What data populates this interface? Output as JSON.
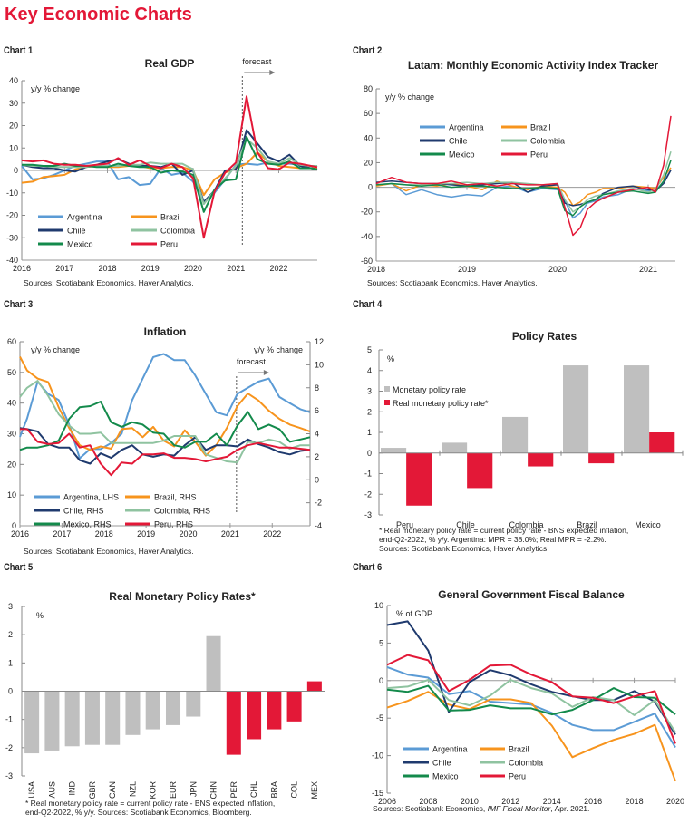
{
  "page": {
    "title": "Key Economic Charts"
  },
  "colors": {
    "Argentina": "#5b9bd5",
    "Brazil": "#f7941d",
    "Chile": "#1f3a6e",
    "Colombia": "#8fc3a0",
    "Mexico": "#138a4b",
    "Peru": "#e31837",
    "grey": "#bfbfbf",
    "red": "#e31837"
  },
  "chart_data": [
    {
      "id": "chart1",
      "label": "Chart 1",
      "type": "line",
      "title": "Real GDP",
      "unit_label": "y/y % change",
      "annotation": "forecast",
      "forecast_start": 2021.15,
      "xlim": [
        2016,
        2022.9
      ],
      "ylim": [
        -40,
        40
      ],
      "yticks": [
        40,
        30,
        20,
        10,
        0,
        -10,
        -20,
        -30,
        -40
      ],
      "xticks": [
        "2016",
        "2017",
        "2018",
        "2019",
        "2020",
        "2021",
        "2022"
      ],
      "legend": [
        "Argentina",
        "Brazil",
        "Chile",
        "Colombia",
        "Mexico",
        "Peru"
      ],
      "x": [
        2016.0,
        2016.25,
        2016.5,
        2016.75,
        2017.0,
        2017.25,
        2017.5,
        2017.75,
        2018.0,
        2018.25,
        2018.5,
        2018.75,
        2019.0,
        2019.25,
        2019.5,
        2019.75,
        2020.0,
        2020.25,
        2020.5,
        2020.75,
        2021.0,
        2021.25,
        2021.5,
        2021.75,
        2022.0,
        2022.25,
        2022.5,
        2022.75,
        2022.9
      ],
      "series": [
        {
          "name": "Argentina",
          "values": [
            2,
            -4,
            -3.5,
            -2,
            0,
            2,
            3,
            4,
            4,
            -4,
            -3,
            -6.5,
            -6,
            1,
            -2,
            -1,
            -5,
            -14,
            -10,
            -4,
            2.5,
            3,
            2.5,
            3.5,
            3,
            3,
            2.5,
            2,
            1.5
          ]
        },
        {
          "name": "Brazil",
          "values": [
            -5.5,
            -5,
            -3,
            -2.5,
            -2,
            0.5,
            1.5,
            2,
            1.5,
            1.5,
            2,
            2,
            1,
            1,
            1.5,
            1.5,
            0,
            -11,
            -4,
            -1,
            1,
            3,
            8,
            4,
            2,
            1.5,
            1,
            1,
            1
          ]
        },
        {
          "name": "Chile",
          "values": [
            2.5,
            1.5,
            1,
            1,
            0,
            -0.5,
            1.5,
            2.5,
            4,
            5,
            3,
            2,
            2,
            1.5,
            3,
            -2,
            0,
            -14,
            -9,
            0,
            0.5,
            18,
            12,
            6,
            4,
            7,
            2,
            1,
            0.5
          ]
        },
        {
          "name": "Colombia",
          "values": [
            2.5,
            2,
            2,
            1.5,
            1.5,
            1.5,
            1.5,
            2,
            2,
            2,
            2.5,
            2.5,
            3.5,
            3,
            3,
            3,
            0.5,
            -15,
            -9,
            -3.5,
            2,
            14,
            10,
            4,
            3,
            5.5,
            2.5,
            2,
            2
          ]
        },
        {
          "name": "Mexico",
          "values": [
            2.5,
            2.5,
            2,
            2,
            3,
            2,
            2,
            1.5,
            1.5,
            3,
            2,
            1.5,
            1.5,
            -1,
            0,
            -0.5,
            -2,
            -18.5,
            -8.5,
            -4.5,
            -4,
            15,
            5,
            3,
            2.5,
            4,
            1,
            1,
            0.5
          ]
        },
        {
          "name": "Peru",
          "values": [
            4.5,
            4,
            4.5,
            3,
            2.5,
            2.5,
            2,
            2.5,
            3,
            5.5,
            2.5,
            4.5,
            2,
            1,
            3,
            1.5,
            -3.5,
            -30,
            -9.5,
            -1,
            3.5,
            33,
            8,
            1,
            0.5,
            3.5,
            3,
            2,
            1.5
          ]
        }
      ]
    },
    {
      "id": "chart2",
      "label": "Chart 2",
      "type": "line",
      "title": "Latam: Monthly Economic Activity Index Tracker",
      "unit_label": "y/y % change",
      "xlim": [
        2018,
        2021.3
      ],
      "ylim": [
        -60,
        80
      ],
      "yticks": [
        80,
        60,
        40,
        20,
        0,
        -20,
        -40,
        -60
      ],
      "xticks": [
        "2018",
        "2019",
        "2020",
        "2021"
      ],
      "legend": [
        "Argentina",
        "Brazil",
        "Chile",
        "Colombia",
        "Mexico",
        "Peru"
      ],
      "x": [
        2018.0,
        2018.17,
        2018.33,
        2018.5,
        2018.67,
        2018.83,
        2019.0,
        2019.17,
        2019.33,
        2019.5,
        2019.67,
        2019.83,
        2020.0,
        2020.08,
        2020.17,
        2020.25,
        2020.33,
        2020.42,
        2020.5,
        2020.67,
        2020.83,
        2021.0,
        2021.08,
        2021.17,
        2021.25
      ],
      "series": [
        {
          "name": "Argentina",
          "values": [
            2,
            3,
            -6,
            -2,
            -6,
            -8,
            -6,
            -7,
            0,
            1,
            -4,
            -1,
            -2,
            -11,
            -25,
            -21,
            -13,
            -11,
            -8,
            -6,
            -1,
            -3,
            -3,
            5,
            14
          ]
        },
        {
          "name": "Brazil",
          "values": [
            1,
            3,
            -3,
            2,
            1,
            3,
            1,
            -2,
            5,
            1,
            -2,
            1,
            0,
            -4,
            -15,
            -12,
            -6,
            -4,
            -1,
            -1,
            1,
            0,
            -1,
            8,
            16
          ]
        },
        {
          "name": "Chile",
          "values": [
            4,
            5,
            4,
            3,
            3,
            2,
            1,
            2,
            3,
            4,
            -4,
            1,
            2,
            -13,
            -15,
            -14,
            -12,
            -10,
            -5,
            0,
            1,
            -2,
            -3,
            3,
            14
          ]
        },
        {
          "name": "Colombia",
          "values": [
            2,
            3,
            2,
            2,
            3,
            3,
            4,
            3,
            4,
            4,
            3,
            2,
            3,
            -10,
            -20,
            -16,
            -10,
            -7,
            -6,
            -3,
            -1,
            -4,
            -2,
            10,
            29
          ]
        },
        {
          "name": "Mexico",
          "values": [
            2,
            3,
            2,
            1,
            2,
            0,
            1,
            1,
            0,
            -1,
            -1,
            0,
            -1,
            -19,
            -23,
            -16,
            -12,
            -10,
            -6,
            -4,
            -3,
            -5,
            -4,
            5,
            22
          ]
        },
        {
          "name": "Peru",
          "values": [
            3,
            8,
            4,
            3,
            3,
            5,
            2,
            3,
            1,
            3,
            2,
            2,
            3,
            -16,
            -39,
            -33,
            -18,
            -12,
            -9,
            -4,
            -2,
            0,
            -4,
            18,
            58
          ]
        }
      ]
    },
    {
      "id": "chart3",
      "label": "Chart 3",
      "type": "line",
      "title": "Inflation",
      "unit_label_left": "y/y % change",
      "unit_label_right": "y/y % change",
      "annotation": "forecast",
      "forecast_start": 2021.15,
      "xlim": [
        2016,
        2022.9
      ],
      "ylim_left": [
        0,
        60
      ],
      "ylim_right": [
        -4,
        12
      ],
      "yticks_left": [
        60,
        50,
        40,
        30,
        20,
        10,
        0
      ],
      "yticks_right": [
        12,
        10,
        8,
        6,
        4,
        2,
        0,
        -2,
        -4
      ],
      "xticks": [
        "2016",
        "2017",
        "2018",
        "2019",
        "2020",
        "2021",
        "2022"
      ],
      "legend": [
        "Argentina, LHS",
        "Brazil, RHS",
        "Chile, RHS",
        "Colombia, RHS",
        "Mexico, RHS",
        "Peru, RHS"
      ],
      "x": [
        2016.0,
        2016.17,
        2016.42,
        2016.67,
        2016.92,
        2017.17,
        2017.42,
        2017.67,
        2017.92,
        2018.17,
        2018.42,
        2018.67,
        2018.92,
        2019.17,
        2019.42,
        2019.67,
        2019.92,
        2020.17,
        2020.42,
        2020.67,
        2020.92,
        2021.17,
        2021.42,
        2021.67,
        2021.92,
        2022.17,
        2022.42,
        2022.67,
        2022.9
      ],
      "series": [
        {
          "name": "Argentina, LHS",
          "axis": "left",
          "values": [
            29,
            35,
            47,
            43,
            41,
            33,
            22,
            25,
            25,
            27,
            30,
            41,
            48,
            55,
            56,
            54,
            54,
            49,
            43,
            37,
            36,
            43,
            45,
            47,
            48,
            42,
            40,
            38,
            37
          ]
        },
        {
          "name": "Brazil, RHS",
          "axis": "right",
          "values": [
            10.7,
            9.5,
            8.8,
            8.5,
            6.3,
            4.5,
            3,
            2.6,
            2.9,
            2.7,
            4.4,
            4.5,
            3.7,
            4.6,
            3.4,
            2.9,
            4.3,
            3.3,
            2.1,
            3,
            4.5,
            6.4,
            7.5,
            6.9,
            6,
            5.3,
            4.8,
            4.5,
            4.2
          ]
        },
        {
          "name": "Chile, RHS",
          "axis": "right",
          "values": [
            4.5,
            4.4,
            4.2,
            3.1,
            2.8,
            2.8,
            1.7,
            1.4,
            2.3,
            1.9,
            2.6,
            3,
            2.2,
            2,
            2.2,
            2.1,
            3,
            3.7,
            2.6,
            3,
            3,
            2.9,
            3.5,
            3.1,
            2.8,
            2.4,
            2.2,
            2.5,
            2.6
          ]
        },
        {
          "name": "Colombia, RHS",
          "axis": "right",
          "values": [
            7.2,
            8,
            8.6,
            7.3,
            5.7,
            4.7,
            4,
            4,
            4.1,
            3.2,
            3.2,
            3.2,
            3.2,
            3.2,
            3.4,
            3.8,
            3.8,
            3.8,
            2.2,
            1.9,
            1.6,
            1.5,
            3.3,
            3.2,
            3.5,
            3.3,
            2.7,
            3,
            3
          ]
        },
        {
          "name": "Mexico, RHS",
          "axis": "right",
          "values": [
            2.6,
            2.8,
            2.8,
            3,
            3.4,
            5.3,
            6.3,
            6.4,
            6.8,
            5,
            4.6,
            5,
            4.8,
            4.1,
            4,
            3,
            2.8,
            3.3,
            3.3,
            4,
            3,
            4.7,
            5.9,
            4.4,
            4.8,
            4.4,
            3.3,
            3.5,
            3.7
          ]
        },
        {
          "name": "Peru, RHS",
          "axis": "right",
          "values": [
            4.4,
            4.4,
            3.3,
            3.1,
            3.2,
            4,
            2.8,
            3,
            1.4,
            0.4,
            1.5,
            1.4,
            2.2,
            2.2,
            2.3,
            1.9,
            1.9,
            1.8,
            1.6,
            1.8,
            2,
            2.6,
            3,
            3.2,
            3,
            2.8,
            2.8,
            2.7,
            2.6
          ]
        }
      ]
    },
    {
      "id": "chart4",
      "label": "Chart 4",
      "type": "bar",
      "title": "Policy Rates",
      "unit_label": "%",
      "categories": [
        "Peru",
        "Chile",
        "Colombia",
        "Brazil",
        "Mexico"
      ],
      "ylim": [
        -3,
        5
      ],
      "yticks": [
        5,
        4,
        3,
        2,
        1,
        0,
        -1,
        -2,
        -3
      ],
      "series": [
        {
          "name": "Monetary policy rate",
          "color": "#bfbfbf",
          "values": [
            0.25,
            0.5,
            1.75,
            4.25,
            4.25
          ]
        },
        {
          "name": "Real monetary policy rate*",
          "color": "#e31837",
          "values": [
            -2.55,
            -1.7,
            -0.65,
            -0.5,
            1.0
          ]
        }
      ],
      "footnotes": [
        "* Real monetary policy rate = current policy rate - BNS expected inflation,",
        "end-Q2-2022, % y/y. Argentina: MPR = 38.0%; Real MPR = -2.2%.",
        "Sources: Scotiabank Economics, Haver Analytics."
      ]
    },
    {
      "id": "chart5",
      "label": "Chart 5",
      "type": "bar",
      "title": "Real Monetary Policy Rates*",
      "unit_label": "%",
      "categories": [
        "USA",
        "AUS",
        "IND",
        "GBR",
        "CAN",
        "NZL",
        "KOR",
        "EUR",
        "JPN",
        "CHN",
        "PER",
        "CHL",
        "BRA",
        "COL",
        "MEX"
      ],
      "values": [
        -2.2,
        -2.1,
        -1.95,
        -1.9,
        -1.9,
        -1.55,
        -1.35,
        -1.2,
        -0.9,
        1.95,
        -2.25,
        -1.7,
        -1.35,
        -1.07,
        0.35
      ],
      "highlight": [
        false,
        false,
        false,
        false,
        false,
        false,
        false,
        false,
        false,
        false,
        true,
        true,
        true,
        true,
        true
      ],
      "ylim": [
        -3,
        3
      ],
      "yticks": [
        3,
        2,
        1,
        0,
        -1,
        -2,
        -3
      ],
      "footnotes": [
        "* Real monetary policy rate = current policy rate - BNS expected inflation,",
        "end-Q2-2022, % y/y. Sources: Scotiabank Economics, Bloomberg."
      ]
    },
    {
      "id": "chart6",
      "label": "Chart 6",
      "type": "line",
      "title": "General Government Fiscal Balance",
      "unit_label": "% of GDP",
      "x": [
        2006,
        2007,
        2008,
        2009,
        2010,
        2011,
        2012,
        2013,
        2014,
        2015,
        2016,
        2017,
        2018,
        2019,
        2020
      ],
      "xticks": [
        "2006",
        "2008",
        "2010",
        "2012",
        "2014",
        "2016",
        "2018",
        "2020"
      ],
      "ylim": [
        -15,
        10
      ],
      "yticks": [
        10,
        5,
        0,
        -5,
        -10,
        -15
      ],
      "legend": [
        "Argentina",
        "Brazil",
        "Chile",
        "Colombia",
        "Mexico",
        "Peru"
      ],
      "series": [
        {
          "name": "Argentina",
          "values": [
            1.8,
            0.8,
            0.4,
            -1.8,
            -1.4,
            -2.8,
            -3.0,
            -3.2,
            -4.3,
            -5.9,
            -6.6,
            -6.6,
            -5.5,
            -4.4,
            -8.9
          ]
        },
        {
          "name": "Brazil",
          "values": [
            -3.6,
            -2.7,
            -1.5,
            -3.2,
            -3.8,
            -2.5,
            -2.5,
            -3.0,
            -6.0,
            -10.2,
            -9.0,
            -7.9,
            -7.1,
            -5.9,
            -13.4
          ]
        },
        {
          "name": "Chile",
          "values": [
            7.4,
            7.9,
            4.0,
            -4.2,
            -0.2,
            1.4,
            0.7,
            -0.5,
            -1.5,
            -2.1,
            -2.6,
            -2.6,
            -1.4,
            -2.8,
            -7.2
          ]
        },
        {
          "name": "Colombia",
          "values": [
            -1.0,
            -0.8,
            0.1,
            -2.6,
            -3.3,
            -2.0,
            0.1,
            -1.0,
            -1.7,
            -3.5,
            -2.2,
            -2.6,
            -4.6,
            -2.6,
            -6.9
          ]
        },
        {
          "name": "Mexico",
          "values": [
            -1.2,
            -1.5,
            -0.7,
            -4.0,
            -3.9,
            -3.3,
            -3.7,
            -3.7,
            -4.5,
            -3.9,
            -2.6,
            -1.0,
            -2.2,
            -2.3,
            -4.5
          ]
        },
        {
          "name": "Peru",
          "values": [
            2.1,
            3.4,
            2.7,
            -1.4,
            0.1,
            2.0,
            2.1,
            0.8,
            -0.2,
            -2.1,
            -2.3,
            -3.0,
            -2.1,
            -1.4,
            -8.4
          ]
        }
      ],
      "source": "Sources: Scotiabank Economics, IMF Fiscal Monitor, Apr. 2021."
    }
  ],
  "sources": {
    "chart1": "Sources: Scotiabank Economics, Haver Analytics.",
    "chart2": "Sources: Scotiabank Economics, Haver Analytics.",
    "chart3": "Sources: Scotiabank Economics, Haver Analytics.",
    "chart6_prefix": "Sources: Scotiabank Economics, ",
    "chart6_italic": "IMF Fiscal Monitor",
    "chart6_suffix": ", Apr. 2021."
  }
}
